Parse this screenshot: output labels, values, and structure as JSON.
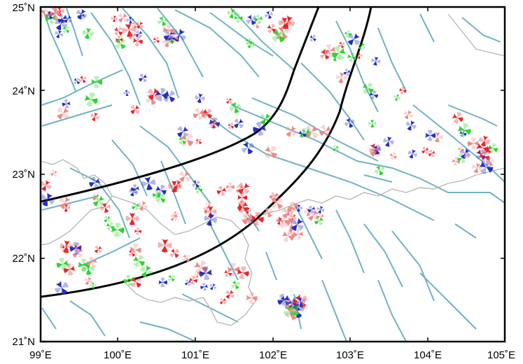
{
  "map": {
    "x_ticks": [
      {
        "value": 99,
        "label": "99˚E"
      },
      {
        "value": 100,
        "label": "100˚E"
      },
      {
        "value": 101,
        "label": "101˚E"
      },
      {
        "value": 102,
        "label": "102˚E"
      },
      {
        "value": 103,
        "label": "103˚E"
      },
      {
        "value": 104,
        "label": "104˚E"
      },
      {
        "value": 105,
        "label": "105˚E"
      }
    ],
    "y_ticks": [
      {
        "value": 21,
        "label": "21˚N"
      },
      {
        "value": 22,
        "label": "22˚N"
      },
      {
        "value": 23,
        "label": "23˚N"
      },
      {
        "value": 24,
        "label": "24˚N"
      },
      {
        "value": 25,
        "label": "25˚N"
      }
    ],
    "lon_range": [
      99,
      105
    ],
    "lat_range": [
      21,
      25
    ],
    "colors": {
      "fault": "#6fb3c4",
      "border": "#b8b8b8",
      "curve": "#000000",
      "red": "#e8262b",
      "blue": "#2330c4",
      "green": "#2bd62b",
      "pink": "#f08a8a"
    },
    "focal_mechanism_colors": [
      "red",
      "blue",
      "green",
      "pink"
    ]
  }
}
